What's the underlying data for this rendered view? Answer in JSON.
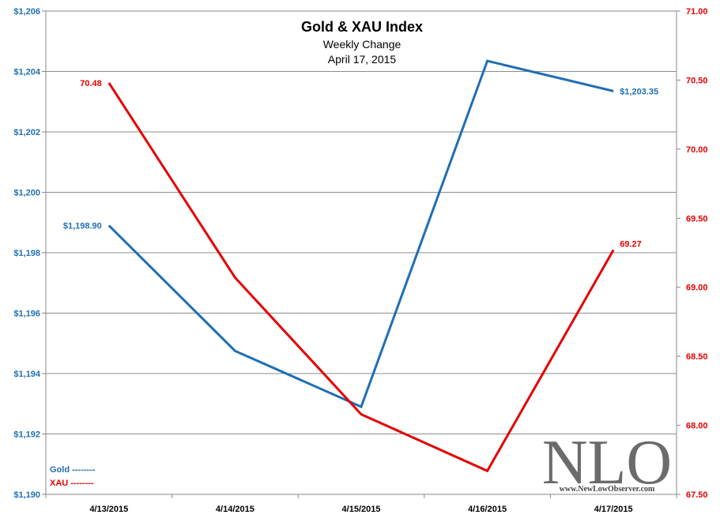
{
  "chart_data": {
    "type": "line",
    "title": "Gold & XAU Index",
    "subtitle": "Weekly Change",
    "date": "April 17, 2015",
    "categories": [
      "4/13/2015",
      "4/14/2015",
      "4/15/2015",
      "4/16/2015",
      "4/17/2015"
    ],
    "y_left": {
      "min": 1190,
      "max": 1206,
      "step": 2,
      "tick_labels": [
        "$1,190",
        "$1,192",
        "$1,194",
        "$1,196",
        "$1,198",
        "$1,200",
        "$1,202",
        "$1,204",
        "$1,206"
      ]
    },
    "y_right": {
      "min": 67.5,
      "max": 71.0,
      "step": 0.5,
      "tick_labels": [
        "67.50",
        "68.00",
        "68.50",
        "69.00",
        "69.50",
        "70.00",
        "70.50",
        "71.00"
      ]
    },
    "series": [
      {
        "name": "Gold",
        "axis": "left",
        "color": "#1f6fb3",
        "values": [
          1198.9,
          1194.75,
          1192.9,
          1204.35,
          1203.35
        ],
        "label_first": "$1,198.90",
        "label_last": "$1,203.35"
      },
      {
        "name": "XAU",
        "axis": "right",
        "color": "#e60000",
        "values": [
          70.48,
          69.07,
          68.08,
          67.67,
          69.27
        ],
        "label_first": "70.48",
        "label_last": "69.27"
      }
    ],
    "legend": [
      {
        "text": "Gold --------",
        "color": "#1f6fb3"
      },
      {
        "text": "XAU --------",
        "color": "#e60000"
      }
    ],
    "legend_position": "bottom-left",
    "grid": true
  },
  "watermark": {
    "logo": "NLO",
    "url": "www.NewLowObserver.com"
  }
}
